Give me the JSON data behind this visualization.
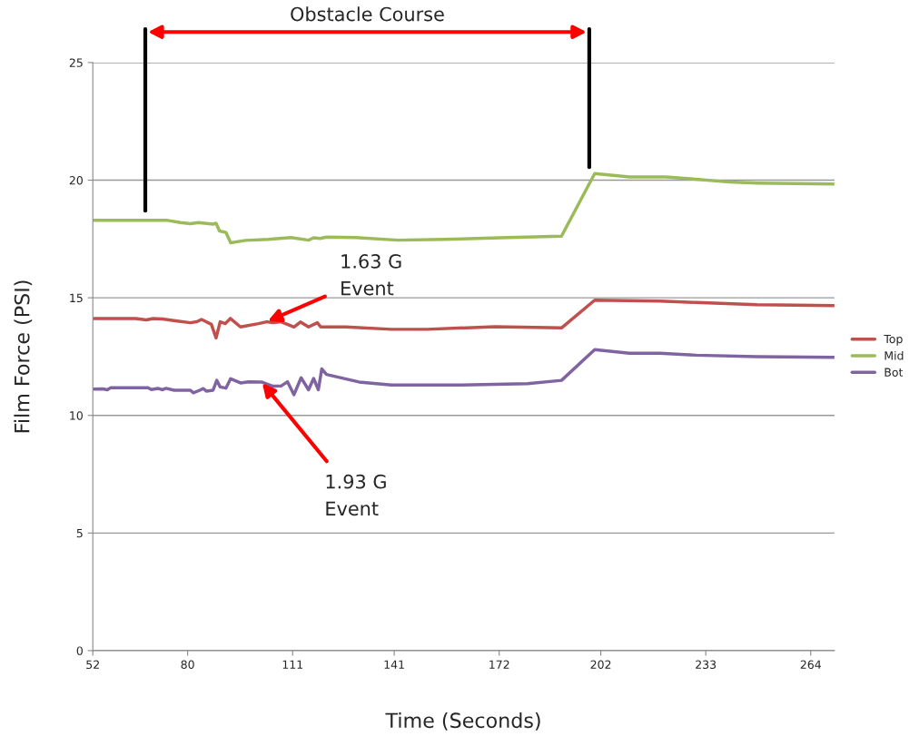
{
  "chart_data": {
    "type": "line",
    "xlabel": "Time (Seconds)",
    "ylabel": "Film Force (PSI)",
    "xlim": [
      52,
      271
    ],
    "xticks": [
      52,
      80,
      111,
      141,
      172,
      202,
      233,
      264
    ],
    "ylim": [
      0,
      25
    ],
    "yticks": [
      0,
      5,
      10,
      15,
      20,
      25
    ],
    "grid": "y",
    "legend": "right",
    "marker": "none",
    "line_style": "solid",
    "ref_lines": [
      {
        "axis": "x",
        "value": 67.5,
        "color": "#000000"
      },
      {
        "axis": "x",
        "value": 198.6,
        "color": "#000000"
      }
    ],
    "annotations": [
      "Obstacle Course",
      {
        "text": "1.63 G\nEvent",
        "x": 103.3,
        "y": 13.98
      },
      {
        "text": "1.93 G\nEvent",
        "x": 101.8,
        "y": 11.42
      }
    ],
    "series": [
      {
        "name": "Top",
        "color": "#c0504d",
        "x": [
          52.2,
          64.6,
          67.8,
          69.8,
          72.6,
          76.9,
          80.8,
          82.7,
          84.1,
          87.0,
          88.4,
          89.6,
          91.1,
          92.6,
          95.6,
          100.9,
          103.3,
          105.2,
          107.6,
          111.4,
          113.3,
          115.7,
          118.3,
          119.3,
          126.7,
          140.2,
          150.7,
          170.8,
          190.4,
          200.2,
          219.5,
          230.2,
          248.1,
          270.8
        ],
        "values": [
          14.12,
          14.12,
          14.06,
          14.12,
          14.1,
          14.01,
          13.94,
          13.98,
          14.08,
          13.87,
          13.29,
          13.98,
          13.9,
          14.12,
          13.76,
          13.9,
          13.98,
          13.94,
          13.98,
          13.76,
          13.97,
          13.76,
          13.94,
          13.76,
          13.76,
          13.66,
          13.66,
          13.77,
          13.72,
          14.9,
          14.86,
          14.8,
          14.71,
          14.67
        ]
      },
      {
        "name": "Mid",
        "color": "#9bbb59",
        "x": [
          52.2,
          74.1,
          77.9,
          80.8,
          83.2,
          87.5,
          88.4,
          89.4,
          91.3,
          92.7,
          97.1,
          103.8,
          110.5,
          115.7,
          117.2,
          119.1,
          121.0,
          129.6,
          142.1,
          155.5,
          174.6,
          190.4,
          200.2,
          210.5,
          221.2,
          230.2,
          240.0,
          248.1,
          270.8
        ],
        "values": [
          18.29,
          18.29,
          18.2,
          18.15,
          18.2,
          18.13,
          18.17,
          17.84,
          17.78,
          17.34,
          17.44,
          17.48,
          17.56,
          17.45,
          17.55,
          17.52,
          17.58,
          17.56,
          17.45,
          17.48,
          17.56,
          17.62,
          20.28,
          20.14,
          20.14,
          20.04,
          19.92,
          19.88,
          19.84
        ]
      },
      {
        "name": "Bot",
        "color": "#8064a2",
        "x": [
          52.2,
          54.9,
          56.3,
          57.3,
          68.3,
          69.3,
          71.2,
          72.6,
          73.6,
          76.0,
          80.8,
          81.7,
          83.6,
          84.6,
          85.6,
          87.5,
          88.6,
          89.6,
          91.3,
          92.7,
          95.6,
          98.0,
          101.8,
          105.2,
          107.6,
          109.5,
          111.4,
          113.5,
          115.7,
          117.2,
          118.6,
          119.6,
          121.0,
          130.6,
          140.2,
          160.3,
          180.4,
          190.4,
          200.2,
          210.5,
          219.5,
          230.2,
          248.1,
          270.8
        ],
        "values": [
          11.12,
          11.13,
          11.09,
          11.18,
          11.18,
          11.1,
          11.15,
          11.09,
          11.15,
          11.07,
          11.07,
          10.96,
          11.07,
          11.14,
          11.03,
          11.07,
          11.49,
          11.21,
          11.16,
          11.56,
          11.38,
          11.43,
          11.42,
          11.24,
          11.25,
          11.43,
          10.88,
          11.6,
          11.09,
          11.57,
          11.09,
          11.98,
          11.74,
          11.42,
          11.29,
          11.29,
          11.35,
          11.49,
          12.8,
          12.64,
          12.64,
          12.56,
          12.5,
          12.47
        ]
      }
    ]
  }
}
